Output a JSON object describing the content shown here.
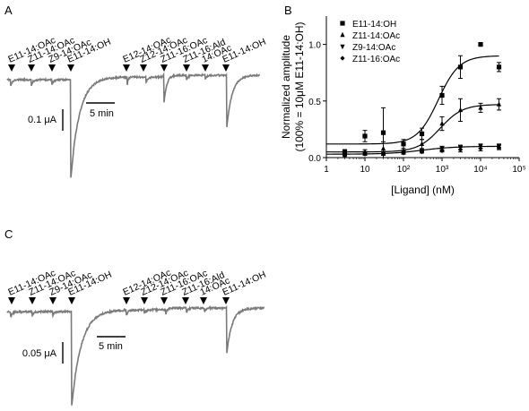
{
  "panels": {
    "A": "A",
    "B": "B",
    "C": "C"
  },
  "trace_a": {
    "stimuli": [
      "E11-14:OAc",
      "Z11-14:OAc",
      "Z9-14:OAc",
      "E11-14:OH",
      "E12-14:OAc",
      "Z12-14:OAc",
      "Z11-16:OAc",
      "Z11-16:Ald",
      "14:OAc",
      "E11-14:OH"
    ],
    "scale_current": "0.1 μA",
    "scale_time": "5 min"
  },
  "trace_c": {
    "stimuli": [
      "E11-14:OAc",
      "Z11-14:OAc",
      "Z9-14:OAc",
      "E11-14:OH",
      "E12-14:OAc",
      "Z12-14:OAc",
      "Z11-16:OAc",
      "Z11-16:Ald",
      "14:OAc",
      "E11-14:OH"
    ],
    "scale_current": "0.05 μA",
    "scale_time": "5 min"
  },
  "chart_data": {
    "type": "scatter",
    "xlabel": "[Ligand] (nM)",
    "ylabel_line1": "Normalized amplitude",
    "ylabel_line2": "(100% = 10μM E11-14:OH)",
    "xscale": "log",
    "xlim": [
      1,
      100000
    ],
    "ylim": [
      0,
      1.25
    ],
    "x_ticks": [
      "1",
      "10",
      "10²",
      "10³",
      "10⁴",
      "10⁵"
    ],
    "y_ticks": [
      "0.0",
      "0.5",
      "1.0"
    ],
    "legend_position": "top-left",
    "series": [
      {
        "name": "E11-14:OH",
        "marker": "square",
        "x": [
          3,
          10,
          30,
          100,
          300,
          1000,
          3000,
          10000,
          30000
        ],
        "y": [
          0.05,
          0.19,
          0.22,
          0.12,
          0.21,
          0.55,
          0.8,
          1.0,
          0.8
        ],
        "err": [
          0.02,
          0.05,
          0.22,
          0.04,
          0.05,
          0.08,
          0.1,
          0,
          0.04
        ],
        "fit": {
          "bottom": 0.12,
          "top": 0.9,
          "ec50": 800,
          "hill": 1.6
        }
      },
      {
        "name": "Z11-14:OAc",
        "marker": "triangle-up",
        "x": [
          3,
          10,
          30,
          100,
          300,
          1000,
          3000,
          10000,
          30000
        ],
        "y": [
          0.05,
          0.05,
          0.08,
          0.06,
          0.12,
          0.3,
          0.42,
          0.44,
          0.47
        ],
        "err": [
          0.02,
          0.02,
          0.06,
          0.02,
          0.04,
          0.06,
          0.1,
          0.04,
          0.05
        ],
        "fit": {
          "bottom": 0.05,
          "top": 0.47,
          "ec50": 900,
          "hill": 1.5
        }
      },
      {
        "name": "Z9-14:OAc",
        "marker": "triangle-down",
        "x": [
          3,
          10,
          30,
          100,
          300,
          1000,
          3000,
          10000,
          30000
        ],
        "y": [
          0.03,
          0.04,
          0.04,
          0.05,
          0.06,
          0.08,
          0.09,
          0.1,
          0.1
        ],
        "err": [
          0.01,
          0.01,
          0.01,
          0.01,
          0.01,
          0.02,
          0.02,
          0.02,
          0.02
        ],
        "fit": {
          "bottom": 0.03,
          "top": 0.1,
          "ec50": 300,
          "hill": 1.0
        }
      },
      {
        "name": "Z11-16:OAc",
        "marker": "diamond",
        "x": [
          3,
          10,
          30,
          100,
          300,
          1000,
          3000,
          10000,
          30000
        ],
        "y": [
          0.02,
          0.03,
          0.03,
          0.04,
          0.05,
          0.06,
          0.07,
          0.08,
          0.09
        ],
        "err": [
          0.01,
          0.01,
          0.01,
          0.01,
          0.01,
          0.01,
          0.02,
          0.02,
          0.02
        ],
        "fit": null
      }
    ]
  }
}
